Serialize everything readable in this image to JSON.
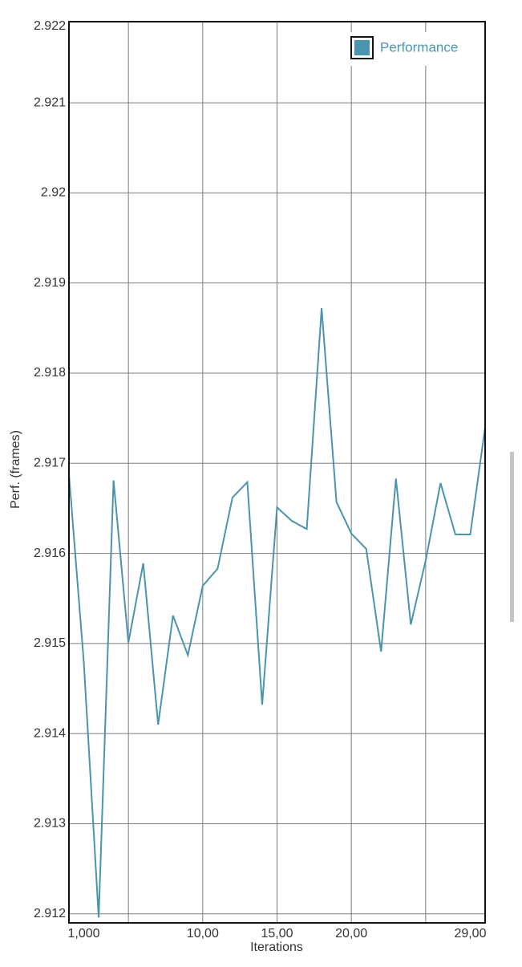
{
  "chart_data": {
    "type": "line",
    "x_label": "Iterations",
    "y_label": "Perf. (frames)",
    "categories": [
      null,
      "1,000",
      null,
      null,
      null,
      null,
      null,
      null,
      null,
      "10,00",
      null,
      null,
      null,
      null,
      "15,00",
      null,
      null,
      null,
      null,
      "20,00",
      null,
      null,
      null,
      null,
      null,
      null,
      null,
      "29,00",
      null
    ],
    "series": [
      {
        "name": "Performance",
        "color": "#4a95ad",
        "values": [
          2.91688,
          2.91479,
          2.91196,
          2.91681,
          2.91501,
          2.91589,
          2.9141,
          2.91531,
          2.91487,
          2.91564,
          2.91583,
          2.91662,
          2.91679,
          2.91432,
          2.91651,
          2.91636,
          2.91627,
          2.91872,
          2.91657,
          2.91622,
          2.91605,
          2.91491,
          2.91683,
          2.91521,
          2.91592,
          2.91678,
          2.91621,
          2.91621,
          2.9174
        ]
      }
    ],
    "ylim": [
      2.9119,
      2.9219
    ],
    "yticks": [
      2.912,
      2.913,
      2.914,
      2.915,
      2.916,
      2.917,
      2.918,
      2.919,
      2.92,
      2.921,
      2.922
    ],
    "grid": true,
    "legend": "top-right"
  }
}
